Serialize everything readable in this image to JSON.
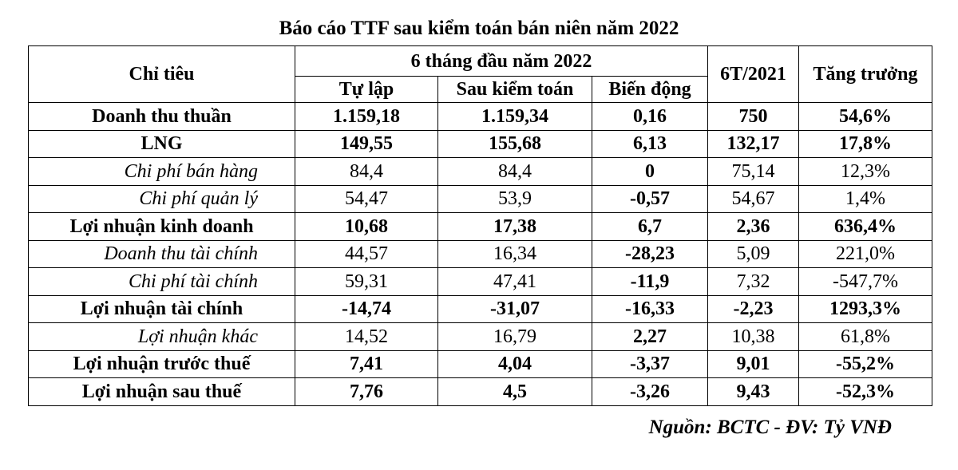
{
  "title": "Báo cáo TTF sau kiểm toán bán niên năm 2022",
  "headers": {
    "indicator": "Chỉ tiêu",
    "group": "6 tháng đầu năm 2022",
    "self_prepared": "Tự lập",
    "audited": "Sau kiểm toán",
    "change": "Biến động",
    "prior": "6T/2021",
    "growth": "Tăng trưởng"
  },
  "rows": [
    {
      "style": "bold",
      "cells": [
        "Doanh thu thuần",
        "1.159,18",
        "1.159,34",
        "0,16",
        "750",
        "54,6%"
      ]
    },
    {
      "style": "bold",
      "cells": [
        "LNG",
        "149,55",
        "155,68",
        "6,13",
        "132,17",
        "17,8%"
      ]
    },
    {
      "style": "italic",
      "cells": [
        "Chi phí bán hàng",
        "84,4",
        "84,4",
        "0",
        "75,14",
        "12,3%"
      ]
    },
    {
      "style": "italic",
      "cells": [
        "Chi phí quản lý",
        "54,47",
        "53,9",
        "-0,57",
        "54,67",
        "1,4%"
      ]
    },
    {
      "style": "bold",
      "cells": [
        "Lợi nhuận kinh doanh",
        "10,68",
        "17,38",
        "6,7",
        "2,36",
        "636,4%"
      ]
    },
    {
      "style": "italic",
      "cells": [
        "Doanh thu tài chính",
        "44,57",
        "16,34",
        "-28,23",
        "5,09",
        "221,0%"
      ]
    },
    {
      "style": "italic",
      "cells": [
        "Chi phí tài chính",
        "59,31",
        "47,41",
        "-11,9",
        "7,32",
        "-547,7%"
      ]
    },
    {
      "style": "bold",
      "cells": [
        "Lợi nhuận tài chính",
        "-14,74",
        "-31,07",
        "-16,33",
        "-2,23",
        "1293,3%"
      ]
    },
    {
      "style": "italic",
      "cells": [
        "Lợi nhuận khác",
        "14,52",
        "16,79",
        "2,27",
        "10,38",
        "61,8%"
      ]
    },
    {
      "style": "bold",
      "cells": [
        "Lợi nhuận trước thuế",
        "7,41",
        "4,04",
        "-3,37",
        "9,01",
        "-55,2%"
      ]
    },
    {
      "style": "bold",
      "cells": [
        "Lợi nhuận sau thuế",
        "7,76",
        "4,5",
        "-3,26",
        "9,43",
        "-52,3%"
      ]
    }
  ],
  "source": "Nguồn: BCTC - ĐV: Tỷ VNĐ"
}
